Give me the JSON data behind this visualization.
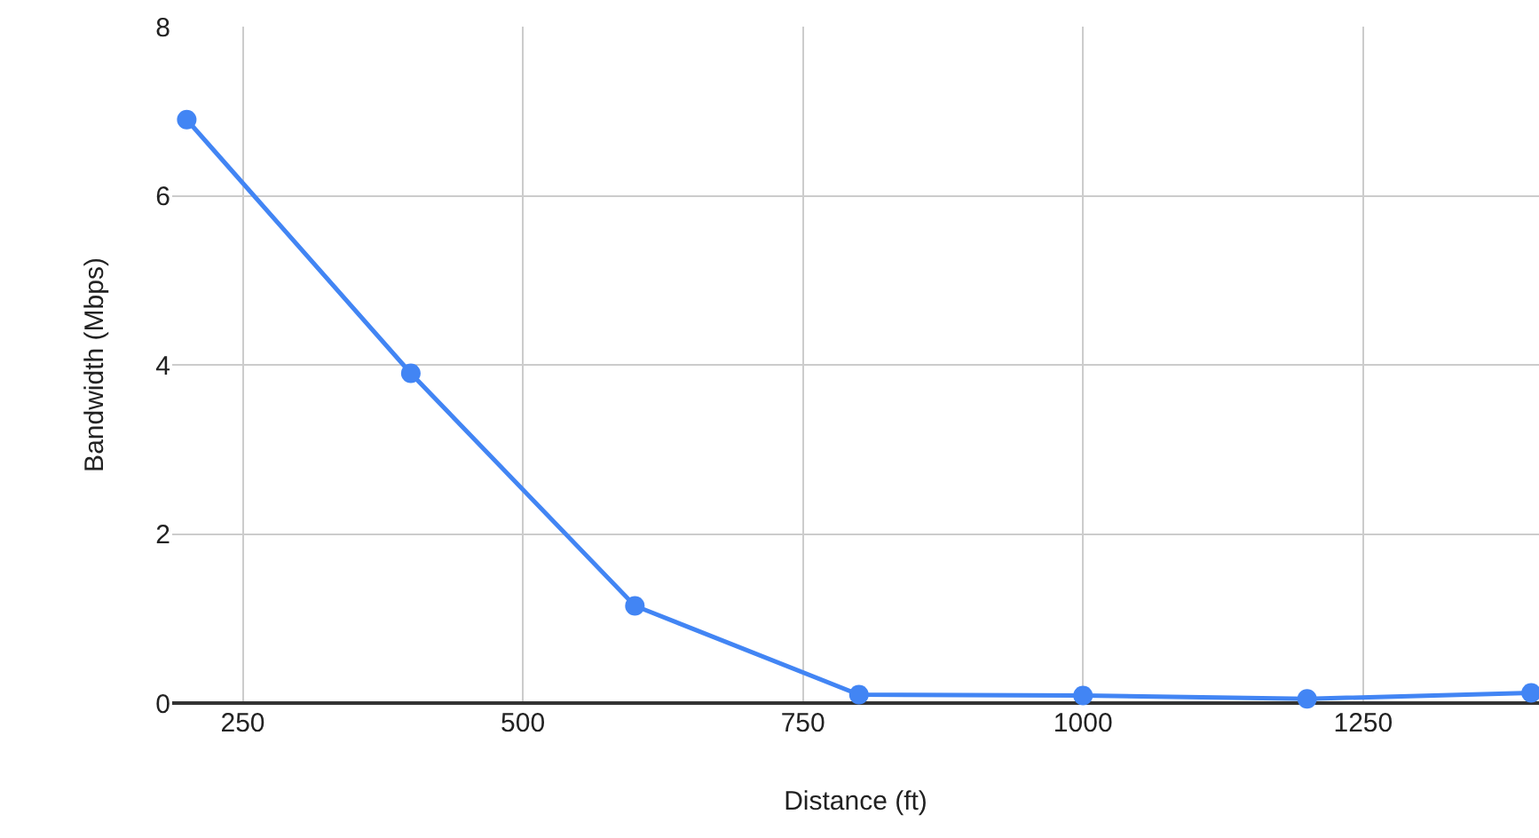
{
  "chart_data": {
    "type": "line",
    "xlabel": "Distance (ft)",
    "ylabel": "Bandwidth (Mbps)",
    "x": [
      200,
      400,
      600,
      800,
      1000,
      1200,
      1400
    ],
    "series": [
      {
        "color": "#4285f4",
        "values": [
          6.9,
          3.9,
          1.15,
          0.1,
          0.09,
          0.05,
          0.12
        ]
      }
    ],
    "xlim": [
      187,
      1407
    ],
    "xticks": [
      250,
      500,
      750,
      1000,
      1250
    ],
    "ylim": [
      0,
      8
    ],
    "yticks": [
      0,
      2,
      4,
      6,
      8
    ],
    "grid": true,
    "legend": false,
    "marker": "circle",
    "line_style": "solid"
  }
}
